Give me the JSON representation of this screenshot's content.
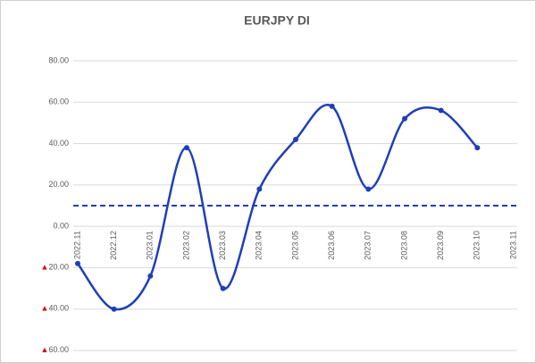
{
  "chart_data": {
    "type": "line",
    "title": "EURJPY DI",
    "categories": [
      "2022.11",
      "2022.12",
      "2023.01",
      "2023.02",
      "2023.03",
      "2023.04",
      "2023.05",
      "2023.06",
      "2023.07",
      "2023.08",
      "2023.09",
      "2023.10",
      "2023.11"
    ],
    "series": [
      {
        "color": "#1f3fb8",
        "values": [
          -18,
          -40,
          -24,
          38,
          -30,
          18,
          42,
          58,
          18,
          52,
          56,
          38,
          null
        ]
      }
    ],
    "ylim": [
      -60,
      80
    ],
    "yticks": [
      {
        "value": -60,
        "label": "▲60.00"
      },
      {
        "value": -40,
        "label": "▲40.00"
      },
      {
        "value": -20,
        "label": "▲20.00"
      },
      {
        "value": 0,
        "label": "0.00"
      },
      {
        "value": 20,
        "label": "20.00"
      },
      {
        "value": 40,
        "label": "40.00"
      },
      {
        "value": 60,
        "label": "60.00"
      },
      {
        "value": 80,
        "label": "80.00"
      }
    ],
    "grid": true,
    "smooth": true,
    "reference_line": {
      "value": 10,
      "color": "#1f3fb8"
    }
  }
}
